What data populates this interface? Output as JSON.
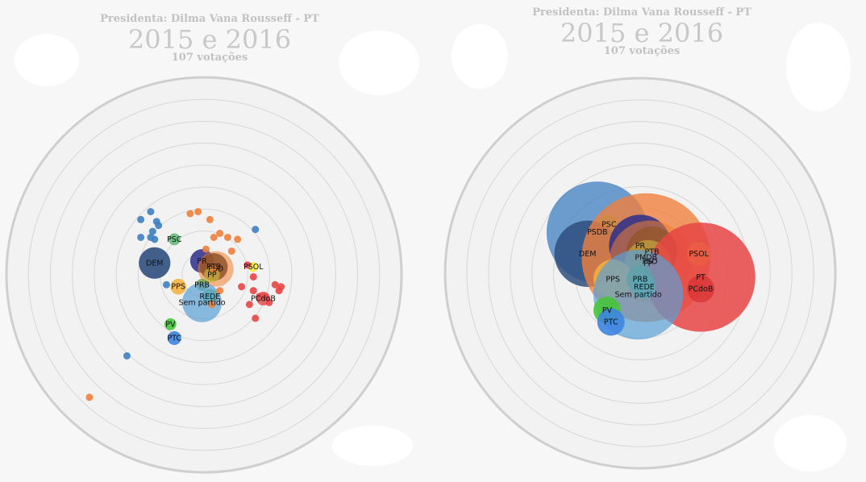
{
  "colors": {
    "background": "#f7f7f7",
    "circle_fill": "#f2f2f2",
    "ring": "#d7d7d7",
    "outer_ring": "#cfcfcf",
    "title": "#c8c8c8"
  },
  "panels": [
    {
      "subtitle": "Presidenta: Dilma Vana Rousseff - PT",
      "title": "2015 e 2016",
      "votes": "107 votações"
    },
    {
      "subtitle": "Presidenta: Dilma Vana Rousseff - PT",
      "title": "2015 e 2016",
      "votes": "107 votações"
    }
  ],
  "chart_data": [
    {
      "type": "scatter",
      "title": "2015 e 2016",
      "subtitle": "Presidenta: Dilma Vana Rousseff - PT",
      "caption": "107 votações",
      "grid": "concentric circles",
      "points": [
        {
          "x": -0.27,
          "y": 0.32,
          "c": "#3e7fc0"
        },
        {
          "x": -0.32,
          "y": 0.28,
          "c": "#3e7fc0"
        },
        {
          "x": -0.24,
          "y": 0.27,
          "c": "#3e7fc0"
        },
        {
          "x": -0.23,
          "y": 0.25,
          "c": "#3e7fc0"
        },
        {
          "x": -0.26,
          "y": 0.22,
          "c": "#3e7fc0"
        },
        {
          "x": -0.32,
          "y": 0.19,
          "c": "#3e7fc0"
        },
        {
          "x": -0.27,
          "y": 0.19,
          "c": "#3e7fc0"
        },
        {
          "x": -0.25,
          "y": 0.18,
          "c": "#3e7fc0"
        },
        {
          "x": 0.26,
          "y": 0.23,
          "c": "#3e7fc0"
        },
        {
          "x": -0.19,
          "y": -0.05,
          "c": "#3e7fc0"
        },
        {
          "x": -0.39,
          "y": -0.41,
          "c": "#3e7fc0"
        },
        {
          "x": -0.58,
          "y": -0.62,
          "c": "#f0803c"
        },
        {
          "x": -0.07,
          "y": 0.31,
          "c": "#f0803c"
        },
        {
          "x": -0.03,
          "y": 0.32,
          "c": "#f0803c"
        },
        {
          "x": 0.03,
          "y": 0.28,
          "c": "#f0803c"
        },
        {
          "x": 0.08,
          "y": 0.21,
          "c": "#f0803c"
        },
        {
          "x": 0.05,
          "y": 0.19,
          "c": "#f0803c"
        },
        {
          "x": 0.12,
          "y": 0.19,
          "c": "#f0803c"
        },
        {
          "x": 0.17,
          "y": 0.18,
          "c": "#f0803c"
        },
        {
          "x": 0.14,
          "y": 0.12,
          "c": "#f0803c"
        },
        {
          "x": 0.01,
          "y": 0.13,
          "c": "#f0803c"
        },
        {
          "x": 0.08,
          "y": -0.08,
          "c": "#f0803c"
        },
        {
          "x": 0.04,
          "y": -0.15,
          "c": "#f0803c"
        },
        {
          "x": 0.05,
          "y": 0.03,
          "c": "#f0803c"
        },
        {
          "x": 0.22,
          "y": 0.05,
          "c": "#e84545"
        },
        {
          "x": 0.25,
          "y": -0.01,
          "c": "#e84545"
        },
        {
          "x": 0.25,
          "y": -0.08,
          "c": "#e84545"
        },
        {
          "x": 0.28,
          "y": -0.11,
          "c": "#e84545"
        },
        {
          "x": 0.36,
          "y": -0.05,
          "c": "#e84545"
        },
        {
          "x": 0.38,
          "y": -0.08,
          "c": "#e84545"
        },
        {
          "x": 0.39,
          "y": -0.06,
          "c": "#e84545"
        },
        {
          "x": 0.33,
          "y": -0.14,
          "c": "#e84545"
        },
        {
          "x": 0.26,
          "y": -0.22,
          "c": "#e84545"
        },
        {
          "x": 0.23,
          "y": -0.15,
          "c": "#e84545"
        },
        {
          "x": 0.19,
          "y": -0.06,
          "c": "#e84545"
        },
        {
          "x": 0.31,
          "y": -0.11,
          "c": "#e84545"
        }
      ],
      "parties": [
        {
          "name": "PSC",
          "x": -0.15,
          "y": 0.18,
          "r": 0.03,
          "c": "#54b56b",
          "o": 0.8
        },
        {
          "name": "DEM",
          "x": -0.25,
          "y": 0.06,
          "r": 0.08,
          "c": "#2f4f7e",
          "o": 0.9
        },
        {
          "name": "PR",
          "x": -0.01,
          "y": 0.07,
          "r": 0.06,
          "c": "#2b2e8a",
          "o": 0.85
        },
        {
          "name": "PTB",
          "x": 0.05,
          "y": 0.04,
          "r": 0.07,
          "c": "#1f1f1f",
          "o": 0.85
        },
        {
          "name": "PSOL",
          "x": 0.25,
          "y": 0.04,
          "r": 0.025,
          "c": "#f5ed38",
          "o": 0.9
        },
        {
          "name": "PSD",
          "x": 0.06,
          "y": 0.03,
          "r": 0.09,
          "c": "#f08030",
          "o": 0.55
        },
        {
          "name": "PP",
          "x": 0.04,
          "y": 0.0,
          "r": 0.04,
          "c": "#c9b43d",
          "o": 0.7
        },
        {
          "name": "PPS",
          "x": -0.13,
          "y": -0.06,
          "r": 0.04,
          "c": "#f3b23b",
          "o": 0.85
        },
        {
          "name": "PRB",
          "x": -0.01,
          "y": -0.05,
          "r": 0.03,
          "c": "#66a84a",
          "o": 0.8
        },
        {
          "name": "REDE",
          "x": 0.03,
          "y": -0.11,
          "r": 0.04,
          "c": "#5cbf6e",
          "o": 0.85
        },
        {
          "name": "Sem partido",
          "x": -0.01,
          "y": -0.14,
          "r": 0.1,
          "c": "#5a9fd6",
          "o": 0.7
        },
        {
          "name": "PCdoB",
          "x": 0.3,
          "y": -0.12,
          "r": 0.035,
          "c": "#e84545",
          "o": 0.8
        },
        {
          "name": "PV",
          "x": -0.17,
          "y": -0.25,
          "r": 0.03,
          "c": "#47c53a",
          "o": 0.9
        },
        {
          "name": "PTC",
          "x": -0.15,
          "y": -0.32,
          "r": 0.035,
          "c": "#3d85e0",
          "o": 0.9
        }
      ]
    },
    {
      "type": "scatter",
      "title": "2015 e 2016",
      "subtitle": "Presidenta: Dilma Vana Rousseff - PT",
      "caption": "107 votações",
      "grid": "concentric circles",
      "points": [],
      "parties": [
        {
          "name": "PSDB",
          "x": -0.22,
          "y": 0.21,
          "r": 0.26,
          "c": "#3e7fc0",
          "o": 0.75
        },
        {
          "name": "PSC",
          "x": -0.16,
          "y": 0.25,
          "r": 0.05,
          "c": "#54b56b",
          "o": 0.8
        },
        {
          "name": "DEM",
          "x": -0.27,
          "y": 0.1,
          "r": 0.17,
          "c": "#2f4f7e",
          "o": 0.85
        },
        {
          "name": "PMDB",
          "x": 0.03,
          "y": 0.08,
          "r": 0.33,
          "c": "#f0803c",
          "o": 0.8
        },
        {
          "name": "PR",
          "x": 0.0,
          "y": 0.14,
          "r": 0.16,
          "c": "#2b2e8a",
          "o": 0.85
        },
        {
          "name": "PTB",
          "x": 0.06,
          "y": 0.11,
          "r": 0.13,
          "c": "#222222",
          "o": 0.75
        },
        {
          "name": "PSD",
          "x": 0.05,
          "y": 0.06,
          "r": 0.21,
          "c": "#f08030",
          "o": 0.55
        },
        {
          "name": "PP",
          "x": 0.04,
          "y": 0.05,
          "r": 0.12,
          "c": "#c9b43d",
          "o": 0.6
        },
        {
          "name": "PSOL",
          "x": 0.3,
          "y": 0.1,
          "r": 0.06,
          "c": "#f5ed38",
          "o": 0.9
        },
        {
          "name": "PT",
          "x": 0.31,
          "y": -0.02,
          "r": 0.28,
          "c": "#e84545",
          "o": 0.85
        },
        {
          "name": "PCdoB",
          "x": 0.31,
          "y": -0.08,
          "r": 0.07,
          "c": "#d83535",
          "o": 0.8
        },
        {
          "name": "PPS",
          "x": -0.14,
          "y": -0.03,
          "r": 0.1,
          "c": "#f3b23b",
          "o": 0.85
        },
        {
          "name": "PRB",
          "x": 0.0,
          "y": -0.03,
          "r": 0.07,
          "c": "#66a84a",
          "o": 0.8
        },
        {
          "name": "REDE",
          "x": 0.02,
          "y": -0.07,
          "r": 0.06,
          "c": "#5cbf6e",
          "o": 0.8
        },
        {
          "name": "Sem partido",
          "x": -0.01,
          "y": -0.11,
          "r": 0.23,
          "c": "#5a9fd6",
          "o": 0.7
        },
        {
          "name": "PV",
          "x": -0.17,
          "y": -0.19,
          "r": 0.07,
          "c": "#47c53a",
          "o": 0.9
        },
        {
          "name": "PTC",
          "x": -0.15,
          "y": -0.25,
          "r": 0.07,
          "c": "#3d85e0",
          "o": 0.9
        }
      ]
    }
  ]
}
